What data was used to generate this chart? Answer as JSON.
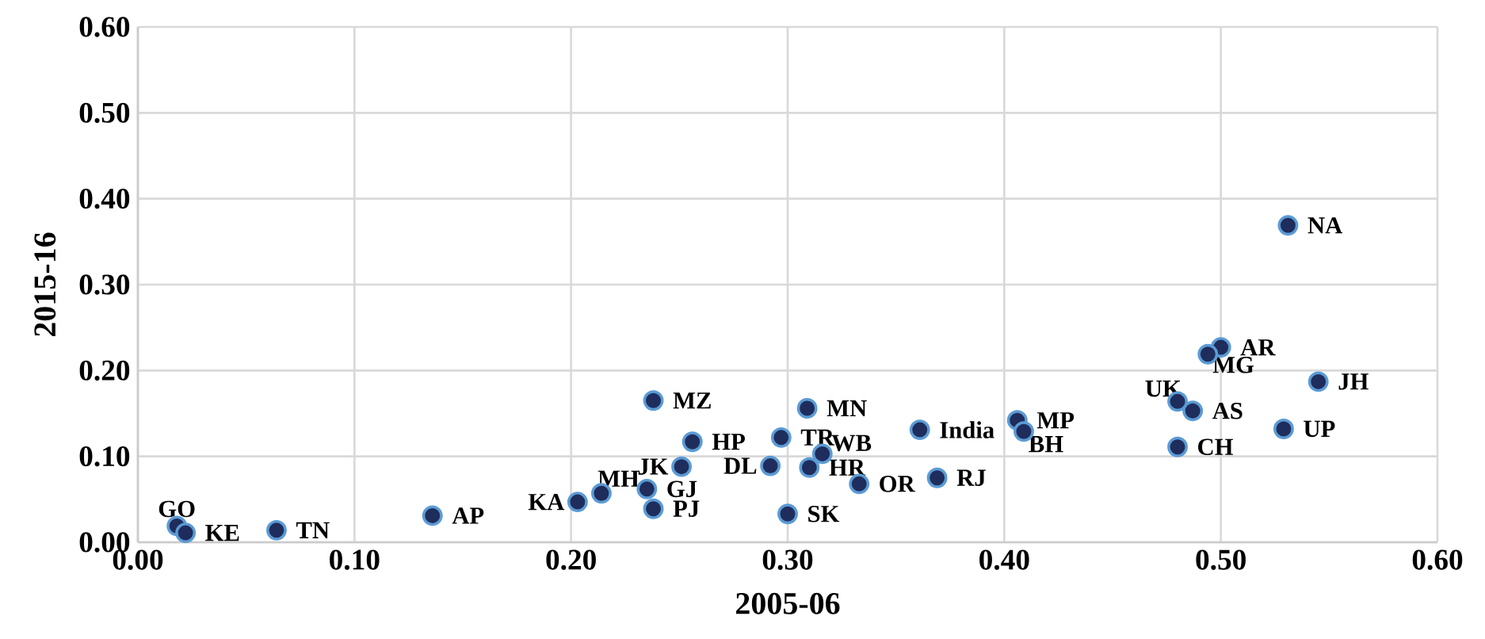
{
  "chart_data": {
    "type": "scatter",
    "xlabel": "2005-06",
    "ylabel": "2015-16",
    "x": [
      0.018,
      0.022,
      0.064,
      0.136,
      0.203,
      0.214,
      0.235,
      0.238,
      0.238,
      0.256,
      0.251,
      0.292,
      0.297,
      0.309,
      0.31,
      0.316,
      0.3,
      0.333,
      0.361,
      0.369,
      0.406,
      0.409,
      0.531,
      0.5,
      0.494,
      0.545,
      0.48,
      0.487,
      0.529,
      0.48
    ],
    "values": [
      0.019,
      0.011,
      0.014,
      0.031,
      0.047,
      0.057,
      0.062,
      0.039,
      0.165,
      0.117,
      0.088,
      0.089,
      0.122,
      0.156,
      0.087,
      0.103,
      0.033,
      0.068,
      0.131,
      0.075,
      0.142,
      0.129,
      0.369,
      0.227,
      0.219,
      0.187,
      0.164,
      0.153,
      0.132,
      0.111
    ],
    "color": "#1f2d5c",
    "grid": true,
    "xlim": [
      0,
      0.6
    ],
    "ylim": [
      0,
      0.6
    ],
    "xticks": [
      {
        "value": 0,
        "label": "0.00"
      },
      {
        "value": 0.1,
        "label": "0.10"
      },
      {
        "value": 0.2,
        "label": "0.20"
      },
      {
        "value": 0.3,
        "label": "0.30"
      },
      {
        "value": 0.4,
        "label": "0.40"
      },
      {
        "value": 0.5,
        "label": "0.50"
      },
      {
        "value": 0.6,
        "label": "0.60"
      }
    ],
    "yticks": [
      {
        "value": 0,
        "label": "0.00"
      },
      {
        "value": 0.1,
        "label": "0.10"
      },
      {
        "value": 0.2,
        "label": "0.20"
      },
      {
        "value": 0.3,
        "label": "0.30"
      },
      {
        "value": 0.4,
        "label": "0.40"
      },
      {
        "value": 0.5,
        "label": "0.50"
      },
      {
        "value": 0.6,
        "label": "0.60"
      }
    ],
    "annotations": [
      {
        "text": "GO",
        "x": 0.018,
        "y": 0.019
      },
      {
        "text": "KE",
        "x": 0.022,
        "y": 0.011
      },
      {
        "text": "TN",
        "x": 0.064,
        "y": 0.014
      },
      {
        "text": "AP",
        "x": 0.136,
        "y": 0.031
      },
      {
        "text": "KA",
        "x": 0.203,
        "y": 0.047
      },
      {
        "text": "MH",
        "x": 0.214,
        "y": 0.057
      },
      {
        "text": "GJ",
        "x": 0.235,
        "y": 0.062
      },
      {
        "text": "PJ",
        "x": 0.238,
        "y": 0.039
      },
      {
        "text": "MZ",
        "x": 0.238,
        "y": 0.165
      },
      {
        "text": "HP",
        "x": 0.256,
        "y": 0.117
      },
      {
        "text": "JK",
        "x": 0.251,
        "y": 0.088
      },
      {
        "text": "DL",
        "x": 0.292,
        "y": 0.089
      },
      {
        "text": "TR",
        "x": 0.297,
        "y": 0.122
      },
      {
        "text": "MN",
        "x": 0.309,
        "y": 0.156
      },
      {
        "text": "HR",
        "x": 0.31,
        "y": 0.087
      },
      {
        "text": "WB",
        "x": 0.316,
        "y": 0.103
      },
      {
        "text": "SK",
        "x": 0.3,
        "y": 0.033
      },
      {
        "text": "OR",
        "x": 0.333,
        "y": 0.068
      },
      {
        "text": "India",
        "x": 0.361,
        "y": 0.131
      },
      {
        "text": "RJ",
        "x": 0.369,
        "y": 0.075
      },
      {
        "text": "MP",
        "x": 0.406,
        "y": 0.142
      },
      {
        "text": "BH",
        "x": 0.409,
        "y": 0.129
      },
      {
        "text": "NA",
        "x": 0.531,
        "y": 0.369
      },
      {
        "text": "AR",
        "x": 0.5,
        "y": 0.227
      },
      {
        "text": "MG",
        "x": 0.494,
        "y": 0.219
      },
      {
        "text": "JH",
        "x": 0.545,
        "y": 0.187
      },
      {
        "text": "UK",
        "x": 0.48,
        "y": 0.164
      },
      {
        "text": "AS",
        "x": 0.487,
        "y": 0.153
      },
      {
        "text": "UP",
        "x": 0.529,
        "y": 0.132
      },
      {
        "text": "CH",
        "x": 0.48,
        "y": 0.111
      }
    ]
  }
}
